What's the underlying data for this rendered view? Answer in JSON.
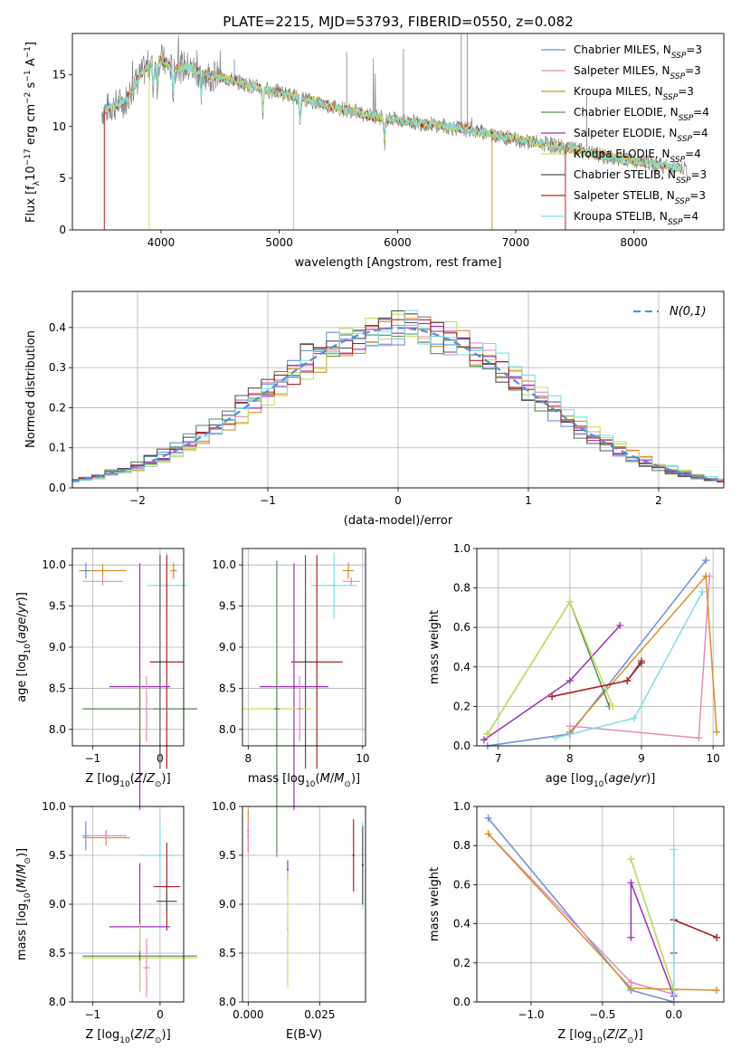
{
  "figure_title": "PLATE=2215, MJD=53793, FIBERID=0550, z=0.082",
  "colors": {
    "Chabrier MILES": "#6a8fd8",
    "Salpeter MILES": "#e48cbc",
    "Kroupa MILES": "#d6902a",
    "Chabrier ELODIE": "#5a8a5a",
    "Salpeter ELODIE": "#9b30b8",
    "Kroupa ELODIE": "#c4e05a",
    "Chabrier STELIB": "#555555",
    "Salpeter STELIB": "#b22222",
    "Kroupa STELIB": "#7fdde8",
    "data": "#808080"
  },
  "chart_data": [
    {
      "id": "spectrum",
      "type": "line",
      "title": "",
      "xlabel": "wavelength [Angstrom, rest frame]",
      "ylabel": "Flux [f_λ 10^-17 erg cm^-2 s^-1 A^-1]",
      "xlim": [
        3250,
        8760
      ],
      "ylim": [
        0,
        19
      ],
      "xticks": [
        4000,
        5000,
        6000,
        7000,
        8000
      ],
      "yticks": [
        0,
        5,
        10,
        15
      ],
      "grid": false,
      "legend_position": "upper-right",
      "legend": [
        {
          "name": "Chabrier MILES",
          "nssp": "3"
        },
        {
          "name": "Salpeter MILES",
          "nssp": "3"
        },
        {
          "name": "Kroupa MILES",
          "nssp": "3"
        },
        {
          "name": "Chabrier ELODIE",
          "nssp": "4"
        },
        {
          "name": "Salpeter ELODIE",
          "nssp": "4"
        },
        {
          "name": "Kroupa ELODIE",
          "nssp": "4"
        },
        {
          "name": "Chabrier STELIB",
          "nssp": "3"
        },
        {
          "name": "Salpeter STELIB",
          "nssp": "3"
        },
        {
          "name": "Kroupa STELIB",
          "nssp": "4"
        }
      ],
      "data_range_x": [
        3500,
        8450
      ],
      "continuum": {
        "x": [
          3500,
          3600,
          3700,
          3800,
          3900,
          4000,
          4100,
          4200,
          4400,
          4600,
          4800,
          5000,
          5200,
          5500,
          5800,
          6000,
          6300,
          6600,
          7000,
          7400,
          7800,
          8100,
          8450
        ],
        "y": [
          11.5,
          12.0,
          12.5,
          14.5,
          16.0,
          16.5,
          15.5,
          15.8,
          15.0,
          14.5,
          13.8,
          13.3,
          12.7,
          11.8,
          11.0,
          10.6,
          10.2,
          9.7,
          8.8,
          8.0,
          7.0,
          6.5,
          5.8
        ]
      }
    },
    {
      "id": "residuals",
      "type": "line",
      "xlabel": "(data-model)/error",
      "ylabel": "Normed distribution",
      "xlim": [
        -2.5,
        2.5
      ],
      "ylim": [
        0,
        0.49
      ],
      "xticks": [
        -2,
        -1,
        0,
        1,
        2
      ],
      "yticks": [
        0.0,
        0.1,
        0.2,
        0.3,
        0.4
      ],
      "grid": true,
      "legend_position": "upper-right",
      "reference_label": "N(0,1)",
      "bin_width": 0.1
    },
    {
      "id": "age-vs-Z",
      "type": "scatter",
      "xlabel": "Z [log10(Z/Z☉)]",
      "ylabel": "age  [log10(age/yr)]",
      "xlim": [
        -1.3,
        0.35
      ],
      "ylim": [
        7.8,
        10.2
      ],
      "xticks": [
        -1,
        0
      ],
      "yticks": [
        8.0,
        8.5,
        9.0,
        9.5,
        10.0
      ],
      "grid": true,
      "points": [
        {
          "series": "Kroupa MILES",
          "x": -0.85,
          "y": 9.93,
          "xerr": 0.35,
          "yerr": 0.08
        },
        {
          "series": "Chabrier MILES",
          "x": -1.1,
          "y": 9.93,
          "xerr": 0.05,
          "yerr": 0.1
        },
        {
          "series": "Kroupa MILES",
          "x": 0.2,
          "y": 9.93,
          "xerr": 0.05,
          "yerr": 0.1
        },
        {
          "series": "Salpeter MILES",
          "x": -0.85,
          "y": 9.8,
          "xerr": 0.3,
          "yerr": 0.05
        },
        {
          "series": "Kroupa STELIB",
          "x": 0.1,
          "y": 9.75,
          "xerr": 0.3,
          "yerr": 0.4
        },
        {
          "series": "Salpeter STELIB",
          "x": 0.1,
          "y": 8.82,
          "xerr": 0.25,
          "yerr": 1.3
        },
        {
          "series": "Chabrier STELIB",
          "x": 0.0,
          "y": 8.82,
          "xerr": 0.05,
          "yerr": 1.3
        },
        {
          "series": "Salpeter ELODIE",
          "x": -0.3,
          "y": 8.52,
          "xerr": 0.45,
          "yerr": 1.5
        },
        {
          "series": "Kroupa ELODIE",
          "x": -0.3,
          "y": 8.25,
          "xerr": 0.85,
          "yerr": 0.4
        },
        {
          "series": "Chabrier ELODIE",
          "x": -0.3,
          "y": 8.25,
          "xerr": 0.85,
          "yerr": 0.4
        },
        {
          "series": "Salpeter MILES",
          "x": -0.2,
          "y": 8.25,
          "xerr": 0.1,
          "yerr": 0.4
        }
      ]
    },
    {
      "id": "age-vs-mass",
      "type": "scatter",
      "xlabel": "mass [log10(M/M☉)]",
      "ylabel": "",
      "xlim": [
        7.9,
        10.05
      ],
      "ylim": [
        7.8,
        10.2
      ],
      "xticks": [
        8,
        10
      ],
      "yticks": [
        8.0,
        8.5,
        9.0,
        9.5,
        10.0
      ],
      "grid": true,
      "points": [
        {
          "series": "Kroupa MILES",
          "x": 9.75,
          "y": 9.93,
          "xerr": 0.1,
          "yerr": 0.1
        },
        {
          "series": "Salpeter MILES",
          "x": 9.8,
          "y": 9.8,
          "xerr": 0.15,
          "yerr": 0.05
        },
        {
          "series": "Kroupa STELIB",
          "x": 9.5,
          "y": 9.75,
          "xerr": 0.4,
          "yerr": 0.4
        },
        {
          "series": "Salpeter STELIB",
          "x": 9.2,
          "y": 8.82,
          "xerr": 0.45,
          "yerr": 1.3
        },
        {
          "series": "Chabrier STELIB",
          "x": 9.0,
          "y": 8.82,
          "xerr": 0.05,
          "yerr": 1.3
        },
        {
          "series": "Salpeter ELODIE",
          "x": 8.8,
          "y": 8.52,
          "xerr": 0.6,
          "yerr": 1.5
        },
        {
          "series": "Kroupa ELODIE",
          "x": 8.5,
          "y": 8.25,
          "xerr": 0.6,
          "yerr": 0.4
        },
        {
          "series": "Chabrier ELODIE",
          "x": 8.5,
          "y": 8.25,
          "xerr": 0.05,
          "yerr": 1.8
        },
        {
          "series": "Salpeter MILES",
          "x": 8.9,
          "y": 8.25,
          "xerr": 0.05,
          "yerr": 0.4
        }
      ]
    },
    {
      "id": "weight-vs-age",
      "type": "line",
      "xlabel": "age  [log10(age/yr)]",
      "ylabel": "mass weight",
      "xlim": [
        6.7,
        10.15
      ],
      "ylim": [
        0,
        1.0
      ],
      "xticks": [
        7,
        8,
        9,
        10
      ],
      "yticks": [
        0.0,
        0.2,
        0.4,
        0.6,
        0.8,
        1.0
      ],
      "grid": true,
      "series": [
        {
          "name": "Chabrier MILES",
          "points": [
            [
              6.85,
              0.0
            ],
            [
              8.0,
              0.06
            ],
            [
              9.9,
              0.94
            ]
          ]
        },
        {
          "name": "Salpeter MILES",
          "points": [
            [
              8.0,
              0.1
            ],
            [
              9.8,
              0.04
            ],
            [
              9.95,
              0.86
            ]
          ]
        },
        {
          "name": "Kroupa MILES",
          "points": [
            [
              8.0,
              0.07
            ],
            [
              9.9,
              0.86
            ],
            [
              10.05,
              0.07
            ]
          ]
        },
        {
          "name": "Chabrier ELODIE",
          "points": [
            [
              6.85,
              0.06
            ],
            [
              8.0,
              0.73
            ],
            [
              8.55,
              0.2
            ]
          ]
        },
        {
          "name": "Salpeter ELODIE",
          "points": [
            [
              6.8,
              0.03
            ],
            [
              8.0,
              0.33
            ],
            [
              8.7,
              0.61
            ]
          ]
        },
        {
          "name": "Kroupa ELODIE",
          "points": [
            [
              6.85,
              0.06
            ],
            [
              8.0,
              0.73
            ],
            [
              8.6,
              0.2
            ]
          ]
        },
        {
          "name": "Chabrier STELIB",
          "points": [
            [
              7.75,
              0.25
            ],
            [
              8.8,
              0.33
            ],
            [
              9.0,
              0.42
            ]
          ]
        },
        {
          "name": "Salpeter STELIB",
          "points": [
            [
              7.75,
              0.25
            ],
            [
              8.8,
              0.33
            ],
            [
              9.0,
              0.43
            ]
          ]
        },
        {
          "name": "Kroupa STELIB",
          "points": [
            [
              7.8,
              0.04
            ],
            [
              8.9,
              0.14
            ],
            [
              9.85,
              0.78
            ]
          ]
        }
      ]
    },
    {
      "id": "mass-vs-Z",
      "type": "scatter",
      "xlabel": "Z [log10(Z/Z☉)]",
      "ylabel": "mass [log10(M/M☉)]",
      "xlim": [
        -1.3,
        0.35
      ],
      "ylim": [
        8.0,
        10.0
      ],
      "xticks": [
        -1,
        0
      ],
      "yticks": [
        8.0,
        8.5,
        9.0,
        9.5,
        10.0
      ],
      "grid": true,
      "points": [
        {
          "series": "Chabrier MILES",
          "x": -1.1,
          "y": 9.7,
          "xerr": 0.05,
          "yerr": 0.15
        },
        {
          "series": "Kroupa MILES",
          "x": -0.8,
          "y": 9.68,
          "xerr": 0.35,
          "yerr": 0.08
        },
        {
          "series": "Salpeter MILES",
          "x": -0.8,
          "y": 9.7,
          "xerr": 0.3,
          "yerr": 0.05
        },
        {
          "series": "Kroupa STELIB",
          "x": 0.0,
          "y": 9.5,
          "xerr": 0.3,
          "yerr": 0.35
        },
        {
          "series": "Salpeter STELIB",
          "x": 0.1,
          "y": 9.18,
          "xerr": 0.2,
          "yerr": 0.45
        },
        {
          "series": "Chabrier STELIB",
          "x": 0.1,
          "y": 9.03,
          "xerr": 0.15,
          "yerr": 0.1
        },
        {
          "series": "Salpeter ELODIE",
          "x": -0.3,
          "y": 8.77,
          "xerr": 0.45,
          "yerr": 0.65
        },
        {
          "series": "Kroupa ELODIE",
          "x": -0.3,
          "y": 8.45,
          "xerr": 0.85,
          "yerr": 0.35
        },
        {
          "series": "Chabrier ELODIE",
          "x": -0.3,
          "y": 8.47,
          "xerr": 0.85,
          "yerr": 0.05
        },
        {
          "series": "Salpeter MILES",
          "x": -0.2,
          "y": 8.35,
          "xerr": 0.05,
          "yerr": 0.3
        }
      ]
    },
    {
      "id": "mass-vs-ebv",
      "type": "scatter",
      "xlabel": "E(B-V)",
      "ylabel": "",
      "xlim": [
        -0.002,
        0.041
      ],
      "ylim": [
        8.0,
        10.0
      ],
      "xticks": [
        0.0,
        0.025
      ],
      "xtick_labels": [
        "0.000",
        "0.025"
      ],
      "yticks": [
        8.0,
        8.5,
        9.0,
        9.5,
        10.0
      ],
      "grid": true,
      "points": [
        {
          "series": "Kroupa MILES",
          "x": 0.0,
          "y": 9.75,
          "yerr": 0.22
        },
        {
          "series": "Salpeter MILES",
          "x": 0.0,
          "y": 9.7,
          "yerr": 0.15
        },
        {
          "series": "Salpeter ELODIE",
          "x": 0.0138,
          "y": 9.35,
          "yerr": 0.1
        },
        {
          "series": "Kroupa ELODIE",
          "x": 0.0138,
          "y": 8.75,
          "yerr": 0.6
        },
        {
          "series": "Salpeter STELIB",
          "x": 0.0368,
          "y": 9.5,
          "yerr": 0.37
        },
        {
          "series": "Kroupa STELIB",
          "x": 0.04,
          "y": 9.4,
          "yerr": 0.45
        },
        {
          "series": "Chabrier STELIB",
          "x": 0.04,
          "y": 9.4,
          "yerr": 0.4
        }
      ]
    },
    {
      "id": "weight-vs-Z",
      "type": "line",
      "xlabel": "Z [log10(Z/Z☉)]",
      "ylabel": "mass weight",
      "xlim": [
        -1.38,
        0.35
      ],
      "ylim": [
        0,
        1.0
      ],
      "xticks": [
        -1.0,
        -0.5,
        0.0
      ],
      "xtick_labels": [
        "−1.0",
        "−0.5",
        "0.0"
      ],
      "yticks": [
        0.0,
        0.2,
        0.4,
        0.6,
        0.8,
        1.0
      ],
      "grid": true,
      "series": [
        {
          "name": "Chabrier MILES",
          "points": [
            [
              -1.3,
              0.94
            ],
            [
              -0.3,
              0.06
            ],
            [
              0.0,
              0.0
            ]
          ]
        },
        {
          "name": "Salpeter MILES",
          "points": [
            [
              -1.3,
              0.86
            ],
            [
              -0.3,
              0.1
            ],
            [
              0.0,
              0.04
            ]
          ]
        },
        {
          "name": "Kroupa MILES",
          "points": [
            [
              -1.3,
              0.86
            ],
            [
              -0.3,
              0.07
            ],
            [
              0.3,
              0.06
            ]
          ]
        },
        {
          "name": "Chabrier ELODIE",
          "points": [
            [
              -0.3,
              0.73
            ],
            [
              0.0,
              0.06
            ]
          ]
        },
        {
          "name": "Salpeter ELODIE",
          "points": [
            [
              -0.3,
              0.33
            ],
            [
              -0.3,
              0.61
            ],
            [
              0.0,
              0.03
            ]
          ]
        },
        {
          "name": "Kroupa ELODIE",
          "points": [
            [
              -0.3,
              0.73
            ],
            [
              0.0,
              0.06
            ]
          ]
        },
        {
          "name": "Chabrier STELIB",
          "points": [
            [
              0.0,
              0.25
            ],
            [
              0.0,
              0.42
            ],
            [
              0.3,
              0.33
            ]
          ]
        },
        {
          "name": "Salpeter STELIB",
          "points": [
            [
              0.0,
              0.42
            ],
            [
              0.3,
              0.33
            ]
          ]
        },
        {
          "name": "Kroupa STELIB",
          "points": [
            [
              0.0,
              0.78
            ],
            [
              0.0,
              0.04
            ]
          ]
        }
      ]
    }
  ]
}
